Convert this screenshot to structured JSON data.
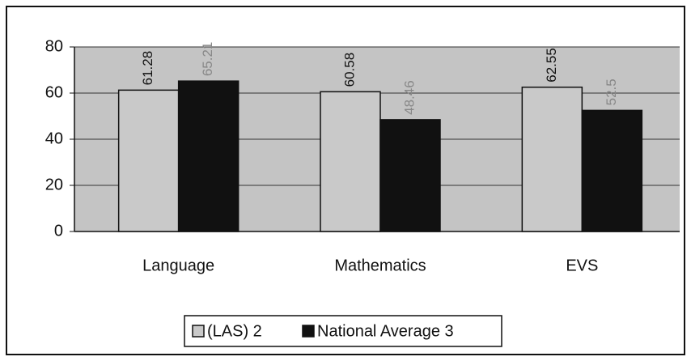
{
  "chart_data": {
    "type": "bar",
    "categories": [
      "Language",
      "Mathematics",
      "EVS"
    ],
    "series": [
      {
        "name": "(LAS) 2",
        "color": "#c9c9c9",
        "values": [
          61.28,
          60.58,
          62.55
        ]
      },
      {
        "name": "National Average 3",
        "color": "#111111",
        "values": [
          65.21,
          48.46,
          52.5
        ]
      }
    ],
    "ylim": [
      0,
      80
    ],
    "yticks": [
      0,
      20,
      40,
      60,
      80
    ],
    "grid": true,
    "legend": "bottom"
  }
}
